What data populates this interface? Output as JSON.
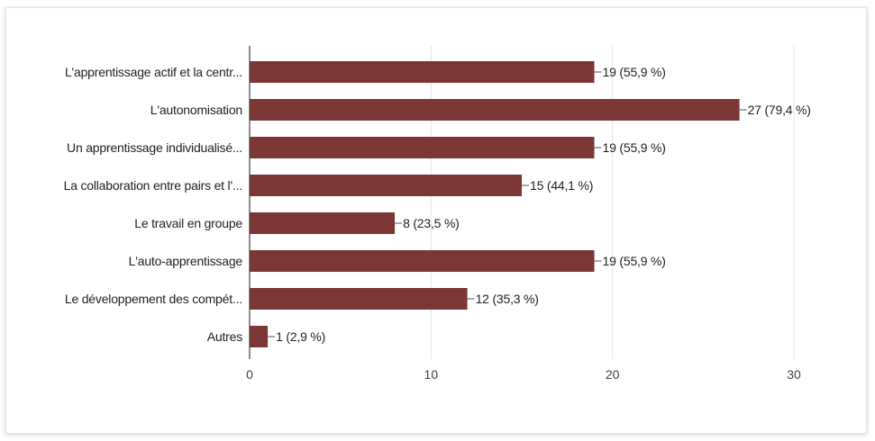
{
  "chart_data": {
    "type": "bar",
    "orientation": "horizontal",
    "categories": [
      "L'apprentissage actif et la centr...",
      "L'autonomisation",
      "Un apprentissage individualisé...",
      "La collaboration entre pairs et l'...",
      "Le travail en groupe",
      "L'auto-apprentissage",
      "Le développement des compét...",
      "Autres"
    ],
    "values": [
      19,
      27,
      19,
      15,
      8,
      19,
      12,
      1
    ],
    "data_labels": [
      "19 (55,9 %)",
      "27 (79,4 %)",
      "19 (55,9 %)",
      "15 (44,1 %)",
      "8 (23,5 %)",
      "19 (55,9 %)",
      "12 (35,3 %)",
      "1 (2,9 %)"
    ],
    "xlim": [
      0,
      30
    ],
    "xticks": [
      0,
      10,
      20,
      30
    ],
    "grid": true,
    "bar_color": "#7b3636",
    "grid_color": "#e6e6e6",
    "axis_color": "#444444"
  }
}
